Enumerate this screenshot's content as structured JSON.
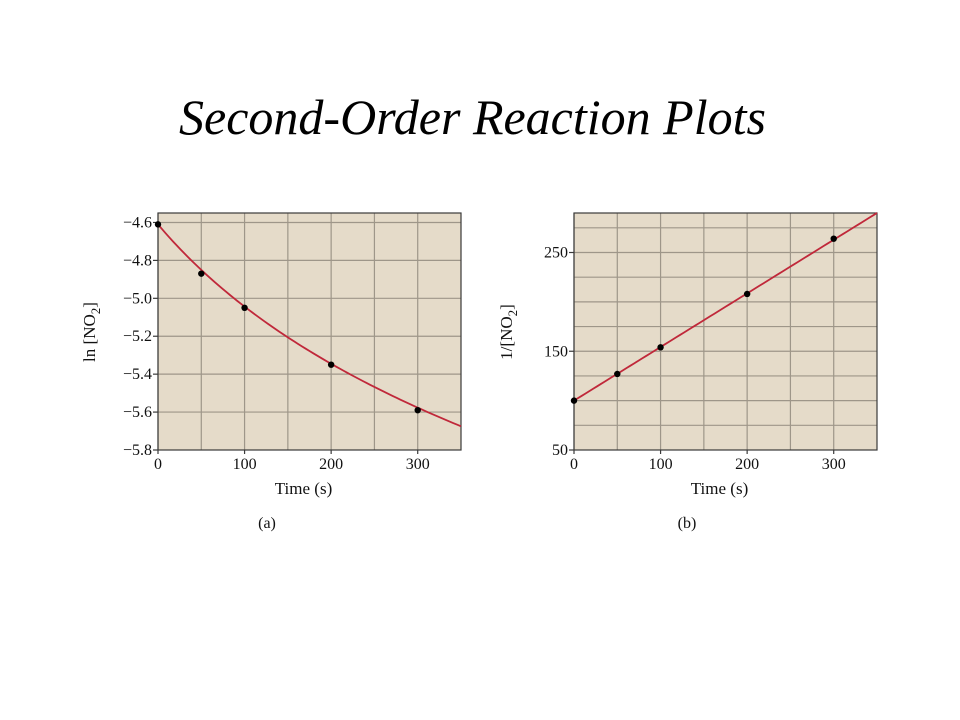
{
  "slide": {
    "title": "Second-Order Reaction Plots"
  },
  "colors": {
    "plot_background": "#e5dbc9",
    "grid": "#9e9689",
    "curve": "#c0283a",
    "points": "#000000"
  },
  "chart_data": [
    {
      "type": "scatter",
      "panel_label": "(a)",
      "xlabel": "Time (s)",
      "ylabel": "ln [NO2]",
      "ylabel_main": "ln [NO",
      "ylabel_sub": "2",
      "ylabel_end": "]",
      "xlim": [
        0,
        350
      ],
      "ylim": [
        -5.8,
        -4.55
      ],
      "x_ticks": [
        0,
        100,
        200,
        300
      ],
      "x_tick_labels": [
        "0",
        "100",
        "200",
        "300"
      ],
      "y_ticks": [
        -4.6,
        -4.8,
        -5.0,
        -5.2,
        -5.4,
        -5.6,
        -5.8
      ],
      "y_tick_labels": [
        "−4.6",
        "−4.8",
        "−5.0",
        "−5.2",
        "−5.4",
        "−5.6",
        "−5.8"
      ],
      "x_grid": [
        0,
        50,
        100,
        150,
        200,
        250,
        300
      ],
      "y_grid": [
        -4.6,
        -4.8,
        -5.0,
        -5.2,
        -5.4,
        -5.6
      ],
      "grid": true,
      "points": [
        {
          "x": 0,
          "y": -4.61
        },
        {
          "x": 50,
          "y": -4.87
        },
        {
          "x": 100,
          "y": -5.05
        },
        {
          "x": 200,
          "y": -5.35
        },
        {
          "x": 300,
          "y": -5.59
        }
      ],
      "fit": {
        "kind": "second-order-ln",
        "ln_c0": -4.61,
        "inv_c0": 100,
        "k": 0.543,
        "x_range": [
          0,
          350
        ]
      }
    },
    {
      "type": "scatter",
      "panel_label": "(b)",
      "xlabel": "Time (s)",
      "ylabel": "1/[NO2]",
      "ylabel_main": "1/[NO",
      "ylabel_sub": "2",
      "ylabel_end": "]",
      "xlim": [
        0,
        350
      ],
      "ylim": [
        50,
        290
      ],
      "x_ticks": [
        0,
        100,
        200,
        300
      ],
      "x_tick_labels": [
        "0",
        "100",
        "200",
        "300"
      ],
      "y_ticks": [
        50,
        150,
        250
      ],
      "y_tick_labels": [
        "50",
        "150",
        "250"
      ],
      "x_grid": [
        0,
        50,
        100,
        150,
        200,
        250,
        300
      ],
      "y_grid": [
        75,
        100,
        125,
        150,
        175,
        200,
        225,
        250,
        275
      ],
      "grid": true,
      "points": [
        {
          "x": 0,
          "y": 100
        },
        {
          "x": 50,
          "y": 127
        },
        {
          "x": 100,
          "y": 154
        },
        {
          "x": 200,
          "y": 208
        },
        {
          "x": 300,
          "y": 264
        }
      ],
      "fit": {
        "kind": "linear",
        "intercept": 100,
        "slope": 0.543,
        "x_range": [
          0,
          350
        ]
      }
    }
  ]
}
